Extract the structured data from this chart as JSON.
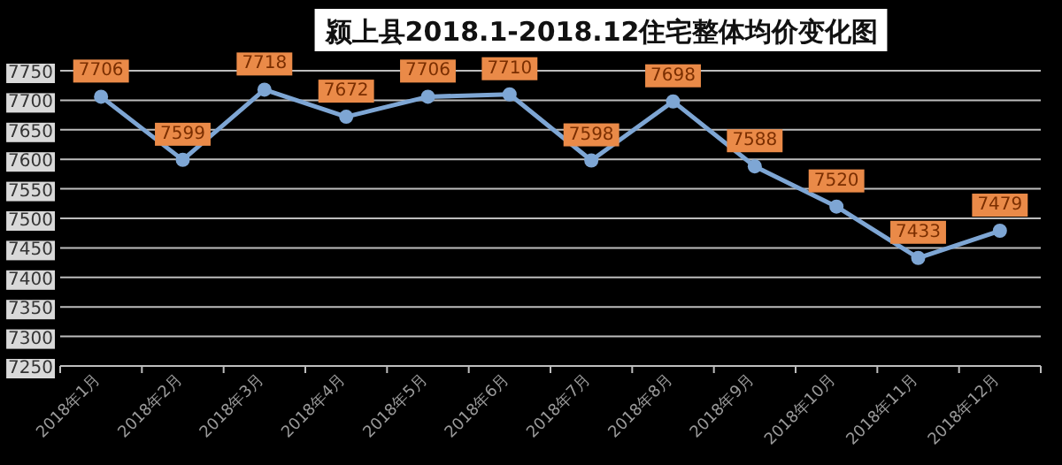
{
  "chart_data": {
    "type": "line",
    "title": "颍上县2018.1-2018.12住宅整体均价变化图",
    "categories": [
      "2018年1月",
      "2018年2月",
      "2018年3月",
      "2018年4月",
      "2018年5月",
      "2018年6月",
      "2018年7月",
      "2018年8月",
      "2018年9月",
      "2018年10月",
      "2018年11月",
      "2018年12月"
    ],
    "series": [
      {
        "color": "#7ea6d4",
        "values": [
          7706,
          7599,
          7718,
          7672,
          7706,
          7710,
          7598,
          7698,
          7588,
          7520,
          7433,
          7479
        ]
      }
    ],
    "ylim": [
      7250,
      7750
    ],
    "yticks": [
      7250,
      7300,
      7350,
      7400,
      7450,
      7500,
      7550,
      7600,
      7650,
      7700,
      7750
    ],
    "grid": "y",
    "marker": "circle",
    "line_style": "solid",
    "data_labels": true
  }
}
